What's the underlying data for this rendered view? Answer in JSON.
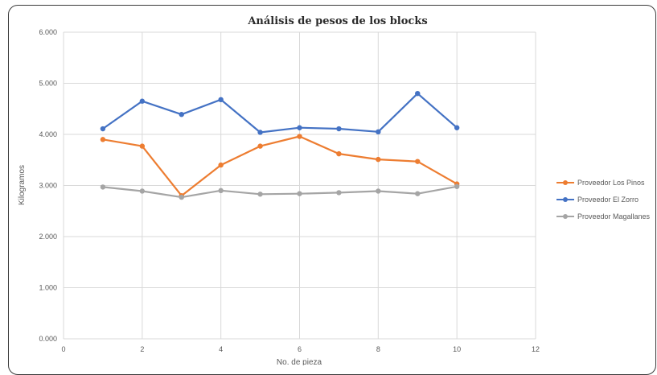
{
  "chart_data": {
    "type": "scatter",
    "title": "Análisis de pesos de los blocks",
    "xlabel": "No. de pieza",
    "ylabel": "Kilogramos",
    "xlim": [
      0,
      12
    ],
    "ylim": [
      0,
      6
    ],
    "x_ticks": [
      0,
      2,
      4,
      6,
      8,
      10,
      12
    ],
    "x_tick_labels": [
      "0",
      "2",
      "4",
      "6",
      "8",
      "10",
      "12"
    ],
    "y_ticks": [
      0,
      1,
      2,
      3,
      4,
      5,
      6
    ],
    "y_tick_labels": [
      "0.000",
      "1.000",
      "2.000",
      "3.000",
      "4.000",
      "5.000",
      "6.000"
    ],
    "grid": true,
    "legend_position": "right",
    "x": [
      1,
      2,
      3,
      4,
      5,
      6,
      7,
      8,
      9,
      10
    ],
    "series": [
      {
        "name": "Proveedor Los Pinos",
        "color": "#ED7D31",
        "values": [
          3.9,
          3.77,
          2.8,
          3.4,
          3.77,
          3.96,
          3.62,
          3.51,
          3.47,
          3.03
        ]
      },
      {
        "name": "Proveedor El Zorro",
        "color": "#4472C4",
        "values": [
          4.11,
          4.65,
          4.39,
          4.68,
          4.04,
          4.13,
          4.11,
          4.05,
          4.8,
          4.13
        ]
      },
      {
        "name": "Proveedor Magallanes",
        "color": "#A5A5A5",
        "values": [
          2.97,
          2.89,
          2.77,
          2.9,
          2.83,
          2.84,
          2.86,
          2.89,
          2.84,
          2.98
        ]
      }
    ]
  }
}
